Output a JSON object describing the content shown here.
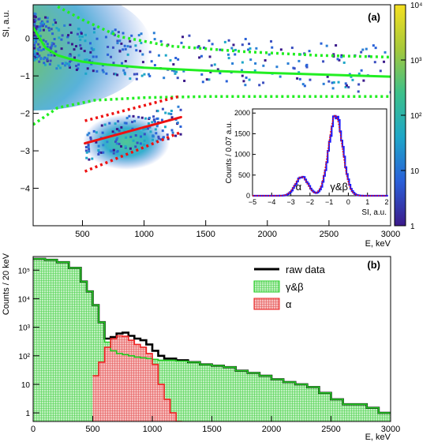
{
  "chart_data": [
    {
      "panel_label": "(a)",
      "type": "heatmap",
      "xlabel": "E, keV",
      "ylabel": "SI, a.u.",
      "xlim": [
        100,
        3000
      ],
      "ylim": [
        -5,
        0.9
      ],
      "x_ticks": [
        "500",
        "1000",
        "1500",
        "2000",
        "2500",
        "3000"
      ],
      "x_tick_values": [
        500,
        1000,
        1500,
        2000,
        2500,
        3000
      ],
      "y_ticks": [
        "0",
        "−1",
        "−2",
        "−3",
        "−4"
      ],
      "y_tick_values": [
        0,
        -1,
        -2,
        -3,
        -4
      ],
      "colorbar": {
        "scale": "log",
        "range": [
          1,
          10000
        ],
        "ticks": [
          "1",
          "10",
          "10²",
          "10³",
          "10⁴"
        ],
        "tick_values": [
          1,
          10,
          100,
          1000,
          10000
        ]
      },
      "curves": [
        {
          "style": "solid",
          "color": "#22ee22",
          "x": [
            100,
            200,
            300,
            400,
            500,
            700,
            1000,
            1500,
            2000,
            2500,
            3000
          ],
          "y": [
            0.3,
            -0.25,
            -0.45,
            -0.55,
            -0.62,
            -0.7,
            -0.78,
            -0.86,
            -0.92,
            -0.97,
            -1.02
          ]
        },
        {
          "style": "dotted",
          "color": "#22ee22",
          "x": [
            300,
            500,
            800,
            1200,
            1800,
            2400,
            3000
          ],
          "y": [
            0.85,
            0.5,
            0.05,
            -0.2,
            -0.35,
            -0.45,
            -0.5
          ]
        },
        {
          "style": "dotted",
          "color": "#22ee22",
          "x": [
            100,
            300,
            600,
            1000,
            1500,
            2000,
            3000
          ],
          "y": [
            -2.3,
            -1.85,
            -1.65,
            -1.58,
            -1.55,
            -1.55,
            -1.55
          ]
        },
        {
          "style": "solid",
          "color": "#ee1111",
          "x": [
            520,
            1300
          ],
          "y": [
            -2.8,
            -2.1
          ]
        },
        {
          "style": "dotted",
          "color": "#ee1111",
          "x": [
            520,
            1280
          ],
          "y": [
            -2.2,
            -1.55
          ]
        },
        {
          "style": "dotted",
          "color": "#ee1111",
          "x": [
            520,
            1300
          ],
          "y": [
            -3.55,
            -2.5
          ]
        }
      ],
      "inset": {
        "type": "line",
        "xlabel": "SI, a.u.",
        "ylabel": "Counts / 0.07 a.u.",
        "xlim": [
          -5,
          2
        ],
        "ylim": [
          0,
          2100
        ],
        "x_ticks": [
          "−5",
          "−4",
          "−3",
          "−2",
          "−1",
          "0",
          "1",
          "2"
        ],
        "x_tick_values": [
          -5,
          -4,
          -3,
          -2,
          -1,
          0,
          1,
          2
        ],
        "y_ticks": [
          "0",
          "500",
          "1000",
          "1500",
          "2000"
        ],
        "y_tick_values": [
          0,
          500,
          1000,
          1500,
          2000
        ],
        "annotations": [
          {
            "text": "α",
            "x": -2.75,
            "y": 100
          },
          {
            "text": "γ&β",
            "x": -0.95,
            "y": 100
          }
        ],
        "peaks": [
          {
            "mean": -2.45,
            "sigma": 0.33,
            "height": 460
          },
          {
            "mean": -0.68,
            "sigma": 0.36,
            "height": 1950
          }
        ]
      }
    },
    {
      "panel_label": "(b)",
      "type": "area",
      "xlabel": "E, keV",
      "ylabel": "Counts / 20 keV",
      "xlim": [
        0,
        3000
      ],
      "ylim": [
        0.5,
        300000
      ],
      "yscale": "log",
      "x_ticks": [
        "0",
        "500",
        "1000",
        "1500",
        "2000",
        "2500",
        "3000"
      ],
      "x_tick_values": [
        0,
        500,
        1000,
        1500,
        2000,
        2500,
        3000
      ],
      "y_ticks": [
        "1",
        "10",
        "10²",
        "10³",
        "10⁴",
        "10⁵"
      ],
      "y_tick_values": [
        1,
        10,
        100,
        1000,
        10000,
        100000
      ],
      "legend": {
        "placement": "top-right",
        "entries": [
          {
            "label": "raw data",
            "color": "#000000"
          },
          {
            "label": "γ&β",
            "color": "#22cc22"
          },
          {
            "label": "α",
            "color": "#ee2222"
          }
        ]
      },
      "series": [
        {
          "name": "raw data",
          "color": "#000000",
          "x": [
            0,
            100,
            200,
            300,
            400,
            450,
            500,
            550,
            600,
            650,
            700,
            750,
            800,
            850,
            900,
            950,
            1000,
            1050,
            1100,
            1200,
            1300,
            1400,
            1500,
            1600,
            1700,
            1800,
            1900,
            2000,
            2100,
            2200,
            2300,
            2400,
            2500,
            2600,
            2700,
            2800,
            2900,
            3000
          ],
          "y": [
            250000,
            230000,
            190000,
            120000,
            40000,
            18000,
            6000,
            1500,
            400,
            450,
            600,
            650,
            500,
            400,
            350,
            250,
            150,
            100,
            80,
            70,
            60,
            50,
            45,
            40,
            30,
            25,
            20,
            15,
            12,
            10,
            8,
            5,
            3,
            2,
            2,
            1.5,
            1,
            1
          ]
        },
        {
          "name": "γ&β",
          "color": "#22cc22",
          "x": [
            0,
            100,
            200,
            300,
            400,
            450,
            500,
            550,
            600,
            650,
            700,
            750,
            800,
            850,
            900,
            950,
            1000,
            1050,
            1100,
            1200,
            1300,
            1400,
            1500,
            1600,
            1700,
            1800,
            1900,
            2000,
            2100,
            2200,
            2300,
            2400,
            2500,
            2600,
            2700,
            2800,
            2900,
            3000
          ],
          "y": [
            250000,
            230000,
            190000,
            120000,
            40000,
            18000,
            6000,
            1500,
            300,
            150,
            120,
            110,
            100,
            90,
            85,
            80,
            75,
            70,
            70,
            65,
            60,
            50,
            45,
            40,
            30,
            25,
            20,
            15,
            12,
            10,
            8,
            5,
            3,
            2,
            2,
            1.5,
            1,
            1
          ]
        },
        {
          "name": "α",
          "color": "#ee2222",
          "x": [
            500,
            550,
            600,
            650,
            700,
            750,
            800,
            850,
            900,
            950,
            1000,
            1050,
            1100,
            1150,
            1200
          ],
          "y": [
            20,
            60,
            200,
            400,
            500,
            480,
            350,
            250,
            200,
            120,
            50,
            10,
            3,
            1,
            0.5
          ]
        }
      ]
    }
  ]
}
